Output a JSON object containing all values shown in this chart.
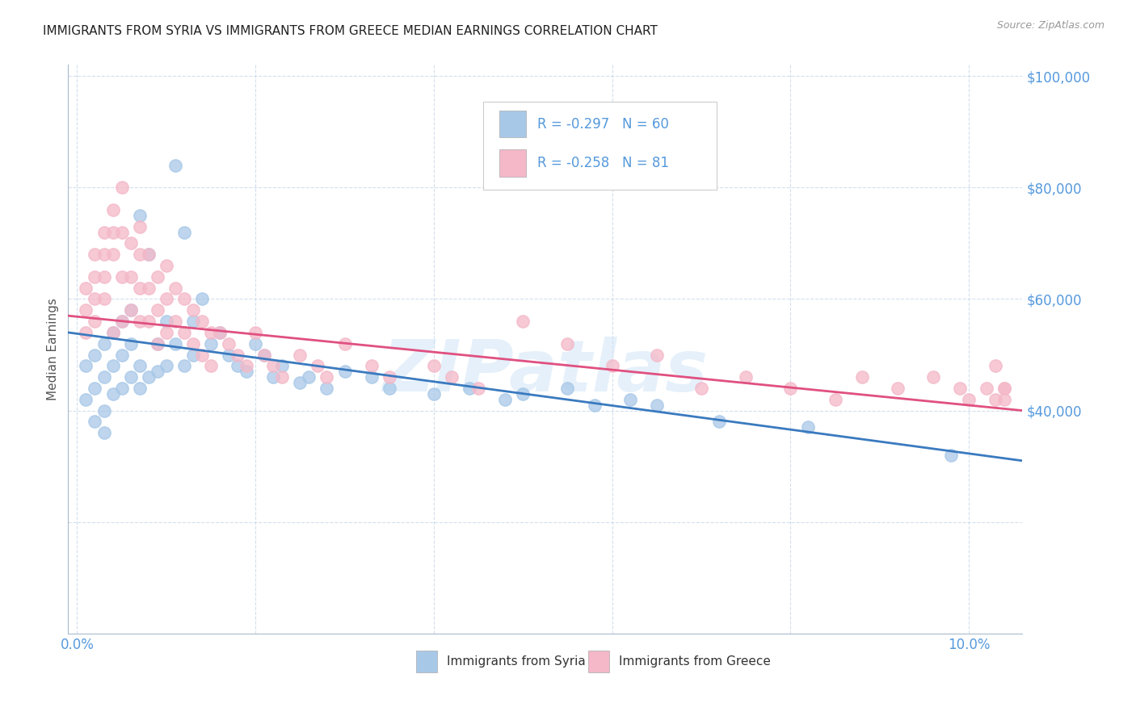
{
  "title": "IMMIGRANTS FROM SYRIA VS IMMIGRANTS FROM GREECE MEDIAN EARNINGS CORRELATION CHART",
  "source": "Source: ZipAtlas.com",
  "ylabel": "Median Earnings",
  "watermark": "ZIPatlas",
  "syria_R": -0.297,
  "syria_N": 60,
  "greece_R": -0.258,
  "greece_N": 81,
  "syria_color": "#a8c8e8",
  "greece_color": "#f4b8c8",
  "syria_line_color": "#3a7abf",
  "greece_line_color": "#e05080",
  "axis_color": "#5599dd",
  "ylim_min": 0,
  "ylim_max": 102000,
  "xlim_min": -0.001,
  "xlim_max": 0.106,
  "yticks": [
    0,
    20000,
    40000,
    60000,
    80000,
    100000
  ],
  "ytick_labels_right": [
    "",
    "",
    "$40,000",
    "$60,000",
    "$80,000",
    "$100,000"
  ],
  "xticks": [
    0.0,
    0.02,
    0.04,
    0.06,
    0.08,
    0.1
  ],
  "xtick_labels": [
    "0.0%",
    "",
    "",
    "",
    "",
    "10.0%"
  ],
  "syria_x": [
    0.001,
    0.001,
    0.002,
    0.002,
    0.002,
    0.003,
    0.003,
    0.003,
    0.003,
    0.004,
    0.004,
    0.004,
    0.005,
    0.005,
    0.005,
    0.006,
    0.006,
    0.006,
    0.007,
    0.007,
    0.007,
    0.008,
    0.008,
    0.009,
    0.009,
    0.01,
    0.01,
    0.011,
    0.011,
    0.012,
    0.012,
    0.013,
    0.013,
    0.014,
    0.015,
    0.016,
    0.017,
    0.018,
    0.019,
    0.02,
    0.021,
    0.022,
    0.023,
    0.025,
    0.026,
    0.028,
    0.03,
    0.033,
    0.035,
    0.04,
    0.044,
    0.048,
    0.05,
    0.055,
    0.058,
    0.062,
    0.065,
    0.072,
    0.082,
    0.098
  ],
  "syria_y": [
    48000,
    42000,
    50000,
    44000,
    38000,
    52000,
    46000,
    40000,
    36000,
    54000,
    48000,
    43000,
    56000,
    50000,
    44000,
    58000,
    52000,
    46000,
    75000,
    48000,
    44000,
    68000,
    46000,
    52000,
    47000,
    56000,
    48000,
    84000,
    52000,
    72000,
    48000,
    56000,
    50000,
    60000,
    52000,
    54000,
    50000,
    48000,
    47000,
    52000,
    50000,
    46000,
    48000,
    45000,
    46000,
    44000,
    47000,
    46000,
    44000,
    43000,
    44000,
    42000,
    43000,
    44000,
    41000,
    42000,
    41000,
    38000,
    37000,
    32000
  ],
  "greece_x": [
    0.001,
    0.001,
    0.001,
    0.002,
    0.002,
    0.002,
    0.002,
    0.003,
    0.003,
    0.003,
    0.003,
    0.004,
    0.004,
    0.004,
    0.004,
    0.005,
    0.005,
    0.005,
    0.005,
    0.006,
    0.006,
    0.006,
    0.007,
    0.007,
    0.007,
    0.007,
    0.008,
    0.008,
    0.008,
    0.009,
    0.009,
    0.009,
    0.01,
    0.01,
    0.01,
    0.011,
    0.011,
    0.012,
    0.012,
    0.013,
    0.013,
    0.014,
    0.014,
    0.015,
    0.015,
    0.016,
    0.017,
    0.018,
    0.019,
    0.02,
    0.021,
    0.022,
    0.023,
    0.025,
    0.027,
    0.028,
    0.03,
    0.033,
    0.035,
    0.04,
    0.042,
    0.045,
    0.05,
    0.055,
    0.06,
    0.065,
    0.07,
    0.075,
    0.08,
    0.085,
    0.088,
    0.092,
    0.096,
    0.099,
    0.1,
    0.102,
    0.103,
    0.104,
    0.104,
    0.104,
    0.103
  ],
  "greece_y": [
    62000,
    58000,
    54000,
    68000,
    64000,
    60000,
    56000,
    72000,
    68000,
    64000,
    60000,
    76000,
    72000,
    68000,
    54000,
    80000,
    72000,
    64000,
    56000,
    70000,
    64000,
    58000,
    73000,
    68000,
    62000,
    56000,
    68000,
    62000,
    56000,
    64000,
    58000,
    52000,
    66000,
    60000,
    54000,
    62000,
    56000,
    60000,
    54000,
    58000,
    52000,
    56000,
    50000,
    54000,
    48000,
    54000,
    52000,
    50000,
    48000,
    54000,
    50000,
    48000,
    46000,
    50000,
    48000,
    46000,
    52000,
    48000,
    46000,
    48000,
    46000,
    44000,
    56000,
    52000,
    48000,
    50000,
    44000,
    46000,
    44000,
    42000,
    46000,
    44000,
    46000,
    44000,
    42000,
    44000,
    42000,
    44000,
    42000,
    44000,
    48000
  ]
}
